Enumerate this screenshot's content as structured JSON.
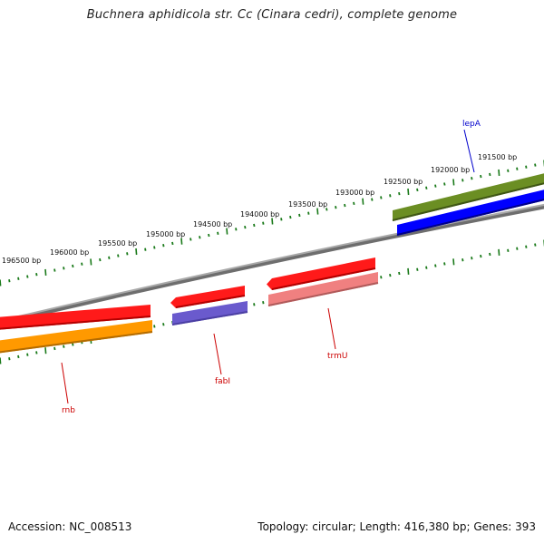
{
  "title": "Buchnera aphidicola str. Cc (Cinara cedri), complete genome",
  "footer": {
    "accession": "Accession: NC_008513",
    "stats": "Topology: circular; Length: 416,380 bp; Genes: 393"
  },
  "colors": {
    "backbone": "#808080",
    "tick": "#1a7a1a",
    "fwd_dark_green": "#6b8e23",
    "fwd_red": "#ff0000",
    "rev_blue": "#0000ff",
    "rev_orange": "#ff9900",
    "rev_slate": "#6a5acd",
    "rev_pink": "#f08080",
    "label_red": "#cc0000",
    "label_blue": "#0000cc"
  },
  "scale": {
    "tick_labels": [
      "196500 bp",
      "196000 bp",
      "195500 bp",
      "195000 bp",
      "194500 bp",
      "194000 bp",
      "193500 bp",
      "193000 bp",
      "192500 bp",
      "192000 bp",
      "191500 bp"
    ]
  },
  "genes": [
    {
      "name": "lepA",
      "strand": "reverse",
      "color": "#0000ff"
    },
    {
      "name": "rnb",
      "strand": "reverse",
      "color": "#ff9900"
    },
    {
      "name": "fabI",
      "strand": "reverse",
      "color": "#6a5acd"
    },
    {
      "name": "trmU",
      "strand": "reverse",
      "color": "#f08080"
    }
  ]
}
